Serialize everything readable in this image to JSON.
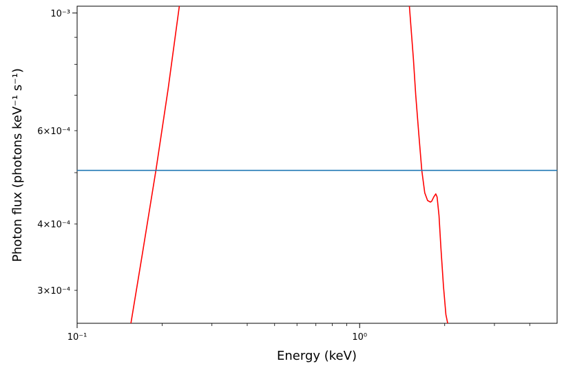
{
  "chart_data": {
    "type": "line",
    "xlabel": "Energy (keV)",
    "ylabel": "Photon flux (photons keV⁻¹ s⁻¹)",
    "xscale": "log",
    "yscale": "log",
    "xlim": [
      0.1,
      5.0
    ],
    "ylim": [
      0.00026,
      0.00103
    ],
    "grid": false,
    "x_major_ticks": [
      {
        "value": 0.1,
        "label": "10⁻¹"
      },
      {
        "value": 1.0,
        "label": "10⁰"
      }
    ],
    "x_minor_ticks": [
      0.2,
      0.3,
      0.4,
      0.5,
      0.6,
      0.7,
      0.8,
      0.9,
      2,
      3,
      4
    ],
    "y_major_ticks": [
      {
        "value": 0.001,
        "label": "10⁻³"
      }
    ],
    "y_minor_ticks": [
      {
        "value": 0.0003,
        "label": "3×10⁻⁴"
      },
      {
        "value": 0.0004,
        "label": "4×10⁻⁴"
      },
      {
        "value": 0.0006,
        "label": "6×10⁻⁴"
      }
    ],
    "y_minor_unlabeled": [
      0.0005,
      0.0007,
      0.0008,
      0.0009
    ],
    "series": [
      {
        "color": "#ff0000",
        "segments": [
          {
            "x": [
              0.155,
              0.17,
              0.19,
              0.21,
              0.23
            ],
            "y": [
              0.00026,
              0.00035,
              0.000505,
              0.00072,
              0.00103
            ]
          },
          {
            "x": [
              1.5,
              1.52,
              1.55,
              1.58,
              1.62,
              1.66,
              1.7,
              1.74,
              1.78,
              1.8,
              1.83,
              1.86,
              1.88,
              1.91,
              1.94,
              1.98,
              2.02,
              2.05
            ],
            "y": [
              0.00103,
              0.00094,
              0.00082,
              0.0007,
              0.00059,
              0.000505,
              0.000458,
              0.000443,
              0.00044,
              0.000442,
              0.00045,
              0.000456,
              0.00045,
              0.000415,
              0.00036,
              0.000305,
              0.00027,
              0.00026
            ]
          }
        ]
      },
      {
        "color": "#1f77b4",
        "segments": [
          {
            "x": [
              0.1,
              5.0
            ],
            "y": [
              0.000505,
              0.000505
            ]
          }
        ]
      }
    ]
  }
}
